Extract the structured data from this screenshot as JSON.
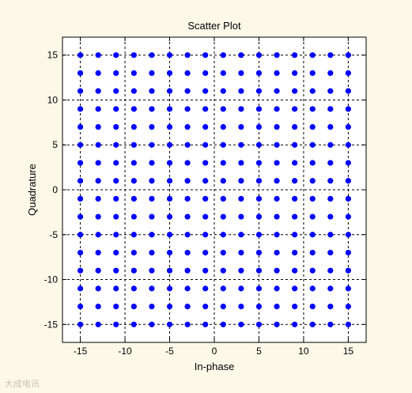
{
  "chart_data": {
    "type": "scatter",
    "title": "Scatter Plot",
    "xlabel": "In-phase",
    "ylabel": "Quadrature",
    "xlim": [
      -17,
      17
    ],
    "ylim": [
      -17,
      17
    ],
    "xticks": [
      -15,
      -10,
      -5,
      0,
      5,
      10,
      15
    ],
    "yticks": [
      -15,
      -10,
      -5,
      0,
      5,
      10,
      15
    ],
    "grid": true,
    "grid_x": [
      -15,
      -10,
      -5,
      0,
      5,
      10,
      15
    ],
    "grid_y": [
      -15,
      -10,
      -5,
      0,
      5,
      10,
      15
    ],
    "points_x": [
      -15,
      -13,
      -11,
      -9,
      -7,
      -5,
      -3,
      -1,
      1,
      3,
      5,
      7,
      9,
      11,
      13,
      15
    ],
    "points_y": [
      -15,
      -13,
      -11,
      -9,
      -7,
      -5,
      -3,
      -1,
      1,
      3,
      5,
      7,
      9,
      11,
      13,
      15
    ],
    "point_color": "#0000ff"
  },
  "colors": {
    "figure_background": "#fdf9e9",
    "axes_background": "#ffffff",
    "grid": "#000000"
  },
  "watermark": "大成电讯"
}
